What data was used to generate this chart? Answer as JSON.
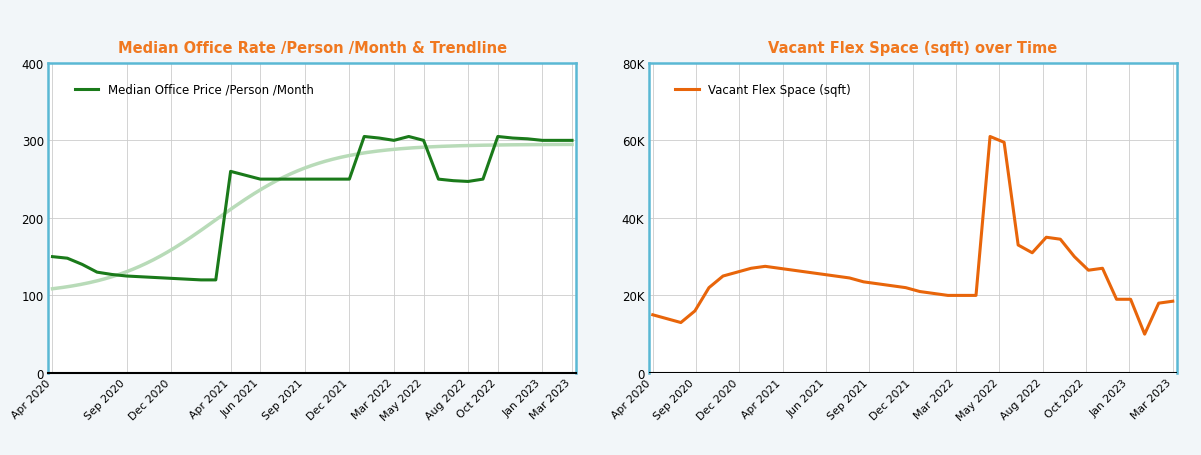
{
  "title1": "Median Office Rate /Person /Month & Trendline",
  "title2": "Vacant Flex Space (sqft) over Time",
  "title_color": "#f07820",
  "x_labels": [
    "Apr 2020",
    "Sep 2020",
    "Dec 2020",
    "Apr 2021",
    "Jun 2021",
    "Sep 2021",
    "Dec 2021",
    "Mar 2022",
    "May 2022",
    "Aug 2022",
    "Oct 2022",
    "Jan 2023",
    "Mar 2023"
  ],
  "panel_bg": "#ffffff",
  "outer_bg": "#f0f4f8",
  "border_color": "#5ab8d4",
  "grid_color": "#cccccc",
  "line1_color": "#1a7a1a",
  "trendline_color": "#b8dbb8",
  "line2_color": "#e8650a",
  "legend_label1": "Median Office Price /Person /Month",
  "legend_label2": "Vacant Flex Space (sqft)",
  "ylim1": [
    0,
    400
  ],
  "ylim2": [
    0,
    80000
  ],
  "yticks1": [
    0,
    100,
    200,
    300,
    400
  ],
  "yticks2": [
    0,
    20000,
    40000,
    60000,
    80000
  ],
  "ytick_labels2": [
    "0",
    "20K",
    "40K",
    "60K",
    "80K"
  ],
  "median_y": [
    150,
    148,
    140,
    130,
    127,
    125,
    124,
    123,
    122,
    121,
    120,
    120,
    260,
    255,
    250,
    250,
    250,
    250,
    250,
    250,
    250,
    305,
    303,
    300,
    305,
    300,
    250,
    248,
    247,
    250,
    305,
    303,
    302,
    300,
    300,
    300
  ],
  "vacant_y": [
    15000,
    14000,
    13000,
    16000,
    22000,
    25000,
    26000,
    27000,
    27500,
    27000,
    26500,
    26000,
    25500,
    25000,
    24500,
    23500,
    23000,
    22500,
    22000,
    21000,
    20500,
    20000,
    20000,
    20000,
    61000,
    59500,
    33000,
    31000,
    35000,
    34500,
    30000,
    26500,
    27000,
    19000,
    19000,
    10000,
    18000,
    18500
  ]
}
